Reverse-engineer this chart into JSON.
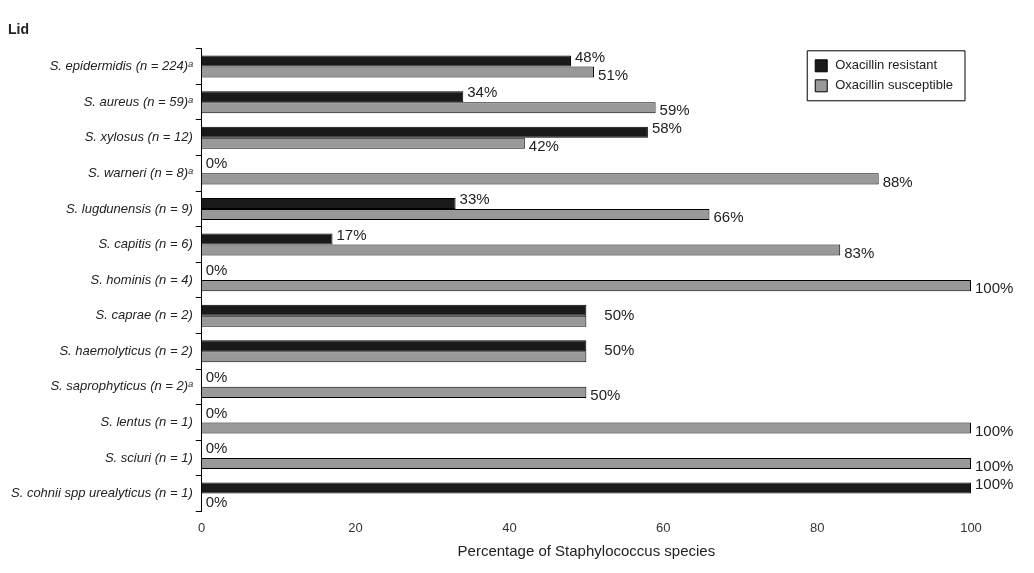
{
  "chart_data": {
    "type": "bar",
    "orientation": "horizontal",
    "title": "Lid",
    "xlabel": "Percentage of Staphylococcus species",
    "categories": [
      "S. epidermidis (n = 224)ᵃ",
      "S. aureus (n = 59)ᵃ",
      "S. xylosus (n = 12)",
      "S. warneri (n = 8)ᵃ",
      "S. lugdunensis (n = 9)",
      "S. capitis (n = 6)",
      "S. hominis (n = 4)",
      "S. caprae (n = 2)",
      "S. haemolyticus (n = 2)",
      "S. saprophyticus (n = 2)ᵃ",
      "S. lentus (n = 1)",
      "S. sciuri (n = 1)",
      "S. cohnii spp urealyticus (n = 1)"
    ],
    "series": [
      {
        "name": "Oxacillin resistant",
        "color": "#1a1a1a",
        "values": [
          48,
          34,
          58,
          0,
          33,
          17,
          0,
          50,
          50,
          0,
          0,
          0,
          100
        ],
        "value_labels": [
          "48%",
          "34%",
          "58%",
          "0%",
          "33%",
          "17%",
          "0%",
          null,
          null,
          "0%",
          "0%",
          "0%",
          "100%"
        ]
      },
      {
        "name": "Oxacillin susceptible",
        "color": "#999999",
        "values": [
          51,
          59,
          42,
          88,
          66,
          83,
          100,
          50,
          50,
          50,
          100,
          100,
          0
        ],
        "value_labels": [
          "51%",
          "59%",
          "42%",
          "88%",
          "66%",
          "83%",
          "100%",
          "50%",
          "50%",
          "50%",
          "100%",
          "100%",
          "0%"
        ]
      }
    ],
    "xlim": [
      0,
      100
    ],
    "xticks": [
      0,
      20,
      40,
      60,
      80,
      100
    ],
    "grid": false,
    "legend": "top right"
  }
}
